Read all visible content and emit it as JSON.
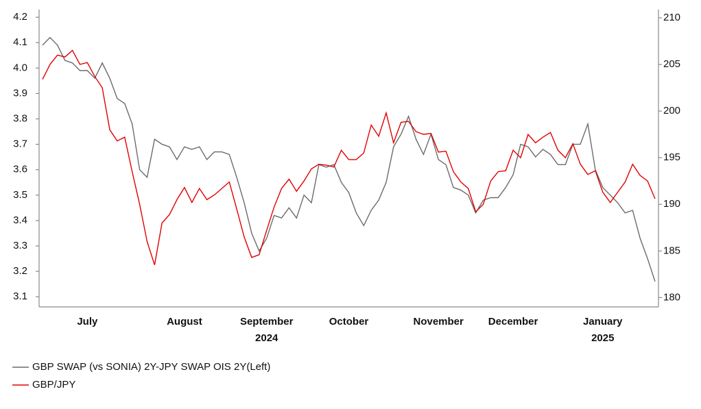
{
  "chart_data": {
    "type": "line",
    "categories": [
      null,
      null,
      null,
      null,
      null,
      null,
      "July",
      null,
      null,
      null,
      null,
      null,
      null,
      null,
      null,
      null,
      null,
      null,
      null,
      "August",
      null,
      null,
      null,
      null,
      null,
      null,
      null,
      null,
      null,
      null,
      "September",
      null,
      null,
      null,
      null,
      null,
      null,
      null,
      null,
      null,
      null,
      "October",
      null,
      null,
      null,
      null,
      null,
      null,
      null,
      null,
      null,
      null,
      null,
      "November",
      null,
      null,
      null,
      null,
      null,
      null,
      null,
      null,
      null,
      "December",
      null,
      null,
      null,
      null,
      null,
      null,
      null,
      null,
      null,
      null,
      null,
      "January",
      null,
      null,
      null,
      null,
      null,
      null,
      null
    ],
    "years": [
      null,
      null,
      null,
      null,
      null,
      null,
      null,
      null,
      null,
      null,
      null,
      null,
      null,
      null,
      null,
      null,
      null,
      null,
      null,
      null,
      null,
      null,
      null,
      null,
      null,
      null,
      null,
      null,
      null,
      null,
      "2024",
      null,
      null,
      null,
      null,
      null,
      null,
      null,
      null,
      null,
      null,
      null,
      null,
      null,
      null,
      null,
      null,
      null,
      null,
      null,
      null,
      null,
      null,
      null,
      null,
      null,
      null,
      null,
      null,
      null,
      null,
      null,
      null,
      null,
      null,
      null,
      null,
      null,
      null,
      null,
      null,
      null,
      null,
      null,
      null,
      "2025",
      null,
      null,
      null,
      null,
      null,
      null,
      null
    ],
    "series": [
      {
        "name": "GBP SWAP (vs SONIA) 2Y-JPY SWAP OIS 2Y(Left)",
        "color": "#6b6b6b",
        "axis": "y",
        "values": [
          4.09,
          4.12,
          4.09,
          4.03,
          4.02,
          3.99,
          3.99,
          3.96,
          4.02,
          3.96,
          3.88,
          3.86,
          3.78,
          3.6,
          3.57,
          3.72,
          3.7,
          3.69,
          3.64,
          3.69,
          3.68,
          3.69,
          3.64,
          3.67,
          3.67,
          3.66,
          3.57,
          3.47,
          3.35,
          3.28,
          3.33,
          3.42,
          3.41,
          3.45,
          3.41,
          3.5,
          3.47,
          3.62,
          3.61,
          3.62,
          3.55,
          3.51,
          3.43,
          3.38,
          3.44,
          3.48,
          3.55,
          3.69,
          3.74,
          3.81,
          3.72,
          3.66,
          3.74,
          3.64,
          3.62,
          3.53,
          3.52,
          3.5,
          3.43,
          3.48,
          3.49,
          3.49,
          3.53,
          3.58,
          3.7,
          3.69,
          3.65,
          3.68,
          3.66,
          3.62,
          3.62,
          3.7,
          3.7,
          3.78,
          3.6,
          3.53,
          3.5,
          3.47,
          3.43,
          3.44,
          3.33,
          3.25,
          3.16
        ]
      },
      {
        "name": "GBP/JPY",
        "color": "#e00000",
        "axis": "y2",
        "values": [
          203.4,
          205,
          206,
          205.8,
          206.5,
          205,
          205.2,
          203.7,
          202.5,
          198,
          196.8,
          197.2,
          193.5,
          190,
          186,
          183.5,
          188,
          188.9,
          190.5,
          191.8,
          190.2,
          191.7,
          190.5,
          191,
          191.7,
          192.4,
          189.5,
          186.5,
          184.3,
          184.6,
          187.2,
          189.7,
          191.7,
          192.7,
          191.4,
          192.5,
          193.8,
          194.3,
          194.2,
          194,
          195.8,
          194.8,
          194.8,
          195.5,
          198.5,
          197.3,
          199.8,
          196.6,
          198.8,
          198.9,
          197.8,
          197.5,
          197.6,
          195.6,
          195.7,
          193.5,
          192.4,
          191.7,
          189.2,
          190,
          192.5,
          193.5,
          193.6,
          195.8,
          195,
          197.5,
          196.6,
          197.2,
          197.7,
          195.8,
          195,
          196.5,
          194.3,
          193.2,
          193.6,
          191.3,
          190.2,
          191.3,
          192.4,
          194.3,
          193.1,
          192.5,
          190.6
        ]
      }
    ],
    "ylim": [
      3.06,
      4.23
    ],
    "yticks": [
      3.1,
      3.2,
      3.3,
      3.4,
      3.5,
      3.6,
      3.7,
      3.8,
      3.9,
      {
        "value": 4,
        "label": "4.0"
      },
      4.1,
      4.2
    ],
    "y2lim": [
      179,
      210.88
    ],
    "y2ticks": [
      180,
      185,
      190,
      195,
      200,
      205,
      210
    ],
    "legend": "bottom-left"
  }
}
